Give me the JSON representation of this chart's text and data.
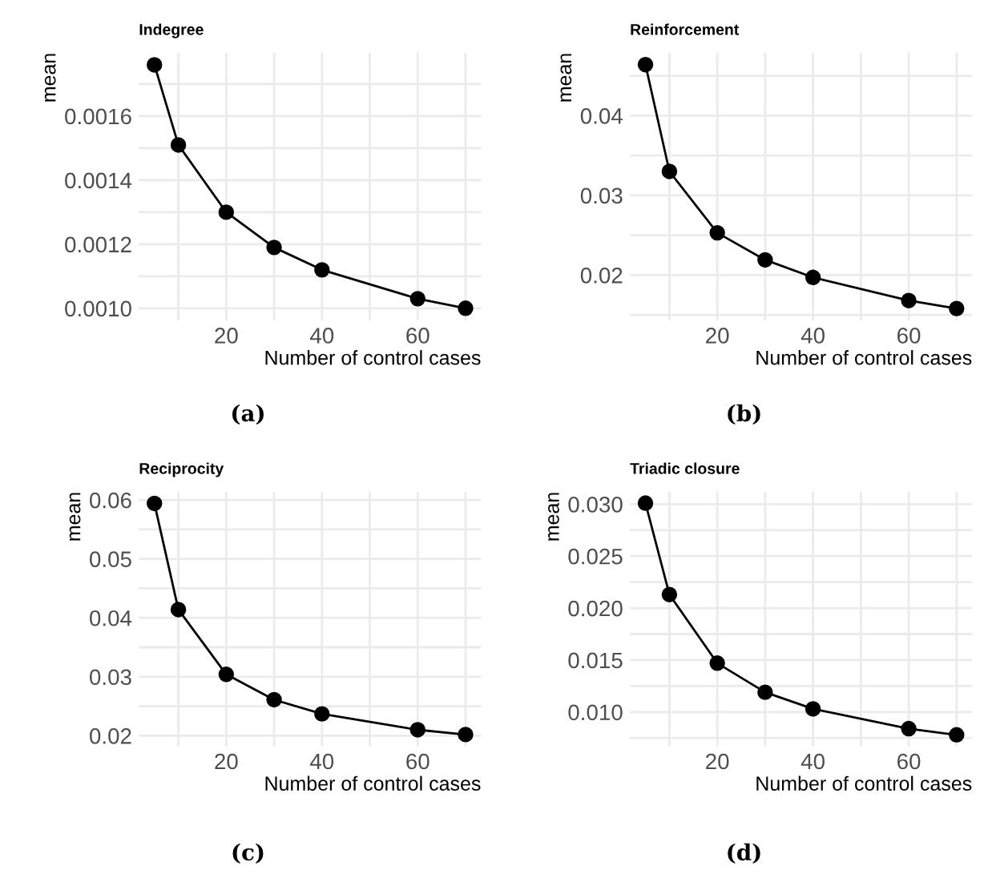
{
  "chart_data": [
    {
      "type": "line",
      "title": "Indegree",
      "xlabel": "Number of control cases",
      "ylabel": "mean",
      "annotations": [
        "(a)"
      ],
      "x": [
        5,
        10,
        20,
        30,
        40,
        60,
        70
      ],
      "series": [
        {
          "color": "#000000",
          "values": [
            0.00176,
            0.00151,
            0.0013,
            0.00119,
            0.00112,
            0.00103,
            0.001
          ]
        }
      ],
      "xlim": [
        1.75,
        73.25
      ],
      "xticks": [
        {
          "value": 10,
          "label": null
        },
        20,
        {
          "value": 30,
          "label": null
        },
        40,
        {
          "value": 50,
          "label": null
        },
        60,
        {
          "value": 70,
          "label": null
        }
      ],
      "ylim": [
        0.000962,
        0.001798
      ],
      "yticks": [
        {
          "value": 0.001,
          "label": "0.0010"
        },
        {
          "value": 0.0011,
          "label": null
        },
        {
          "value": 0.0012,
          "label": "0.0012"
        },
        {
          "value": 0.0013,
          "label": null
        },
        {
          "value": 0.0014,
          "label": "0.0014"
        },
        {
          "value": 0.0015,
          "label": null
        },
        {
          "value": 0.0016,
          "label": "0.0016"
        },
        {
          "value": 0.0017,
          "label": null
        }
      ],
      "grid": true,
      "marker": "circle",
      "line_style": "solid"
    },
    {
      "type": "line",
      "title": "Reinforcement",
      "xlabel": "Number of control cases",
      "ylabel": "mean",
      "annotations": [
        "(b)"
      ],
      "x": [
        5,
        10,
        20,
        30,
        40,
        60,
        70
      ],
      "series": [
        {
          "color": "#000000",
          "values": [
            0.0464,
            0.033,
            0.0253,
            0.0219,
            0.0197,
            0.0168,
            0.0158
          ]
        }
      ],
      "xlim": [
        1.75,
        73.25
      ],
      "xticks": [
        {
          "value": 10,
          "label": null
        },
        20,
        {
          "value": 30,
          "label": null
        },
        40,
        {
          "value": 50,
          "label": null
        },
        60,
        {
          "value": 70,
          "label": null
        }
      ],
      "ylim": [
        0.0143,
        0.0479
      ],
      "yticks": [
        {
          "value": 0.015,
          "label": null
        },
        0.02,
        {
          "value": 0.025,
          "label": null
        },
        0.03,
        {
          "value": 0.035,
          "label": null
        },
        0.04,
        {
          "value": 0.045,
          "label": null
        }
      ],
      "grid": true,
      "marker": "circle",
      "line_style": "solid"
    },
    {
      "type": "line",
      "title": "Reciprocity",
      "xlabel": "Number of control cases",
      "ylabel": "mean",
      "annotations": [
        "(c)"
      ],
      "x": [
        5,
        10,
        20,
        30,
        40,
        60,
        70
      ],
      "series": [
        {
          "color": "#000000",
          "values": [
            0.0594,
            0.0414,
            0.0304,
            0.0261,
            0.0237,
            0.021,
            0.0202
          ]
        }
      ],
      "xlim": [
        1.75,
        73.25
      ],
      "xticks": [
        {
          "value": 10,
          "label": null
        },
        20,
        {
          "value": 30,
          "label": null
        },
        40,
        {
          "value": 50,
          "label": null
        },
        60,
        {
          "value": 70,
          "label": null
        }
      ],
      "ylim": [
        0.0182,
        0.0614
      ],
      "yticks": [
        0.02,
        {
          "value": 0.025,
          "label": null
        },
        0.03,
        {
          "value": 0.035,
          "label": null
        },
        0.04,
        {
          "value": 0.045,
          "label": null
        },
        0.05,
        {
          "value": 0.055,
          "label": null
        },
        0.06
      ],
      "grid": true,
      "marker": "circle",
      "line_style": "solid"
    },
    {
      "type": "line",
      "title": "Triadic closure",
      "xlabel": "Number of control cases",
      "ylabel": "mean",
      "annotations": [
        "(d)"
      ],
      "x": [
        5,
        10,
        20,
        30,
        40,
        60,
        70
      ],
      "series": [
        {
          "color": "#000000",
          "values": [
            0.0301,
            0.0213,
            0.0147,
            0.0119,
            0.0103,
            0.0084,
            0.0078
          ]
        }
      ],
      "xlim": [
        1.75,
        73.25
      ],
      "xticks": [
        {
          "value": 10,
          "label": null
        },
        20,
        {
          "value": 30,
          "label": null
        },
        40,
        {
          "value": 50,
          "label": null
        },
        60,
        {
          "value": 70,
          "label": null
        }
      ],
      "ylim": [
        0.0067,
        0.0312
      ],
      "yticks": [
        {
          "value": 0.0075,
          "label": null
        },
        {
          "value": 0.01,
          "label": "0.010"
        },
        {
          "value": 0.0125,
          "label": null
        },
        {
          "value": 0.015,
          "label": "0.015"
        },
        {
          "value": 0.0175,
          "label": null
        },
        {
          "value": 0.02,
          "label": "0.020"
        },
        {
          "value": 0.0225,
          "label": null
        },
        {
          "value": 0.025,
          "label": "0.025"
        },
        {
          "value": 0.0275,
          "label": null
        },
        {
          "value": 0.03,
          "label": "0.030"
        }
      ],
      "grid": true,
      "marker": "circle",
      "line_style": "solid"
    }
  ]
}
